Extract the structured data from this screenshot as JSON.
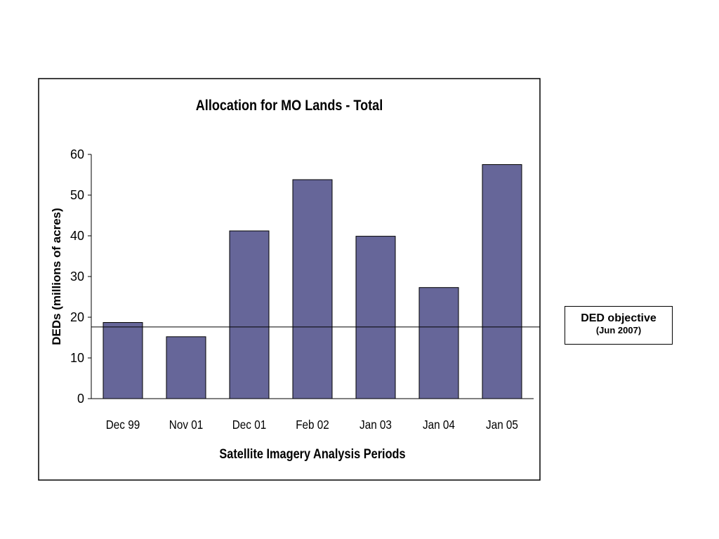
{
  "chart_data": {
    "type": "bar",
    "title": "Allocation for MO Lands -  Total",
    "xlabel": "Satellite Imagery Analysis Periods",
    "ylabel": "DEDs (millions of acres)",
    "categories": [
      "Dec 99",
      "Nov 01",
      "Dec 01",
      "Feb 02",
      "Jan 03",
      "Jan 04",
      "Jan 05"
    ],
    "values": [
      18.7,
      15.2,
      41.2,
      53.8,
      39.9,
      27.3,
      57.5
    ],
    "ylim": [
      0,
      60
    ],
    "yticks": [
      0,
      10,
      20,
      30,
      40,
      50,
      60
    ],
    "reference_line": 17.6,
    "bar_color": "#666699",
    "grid": false,
    "legend": "none"
  },
  "callout": {
    "title": "DED objective",
    "subtitle": "(Jun 2007)"
  }
}
